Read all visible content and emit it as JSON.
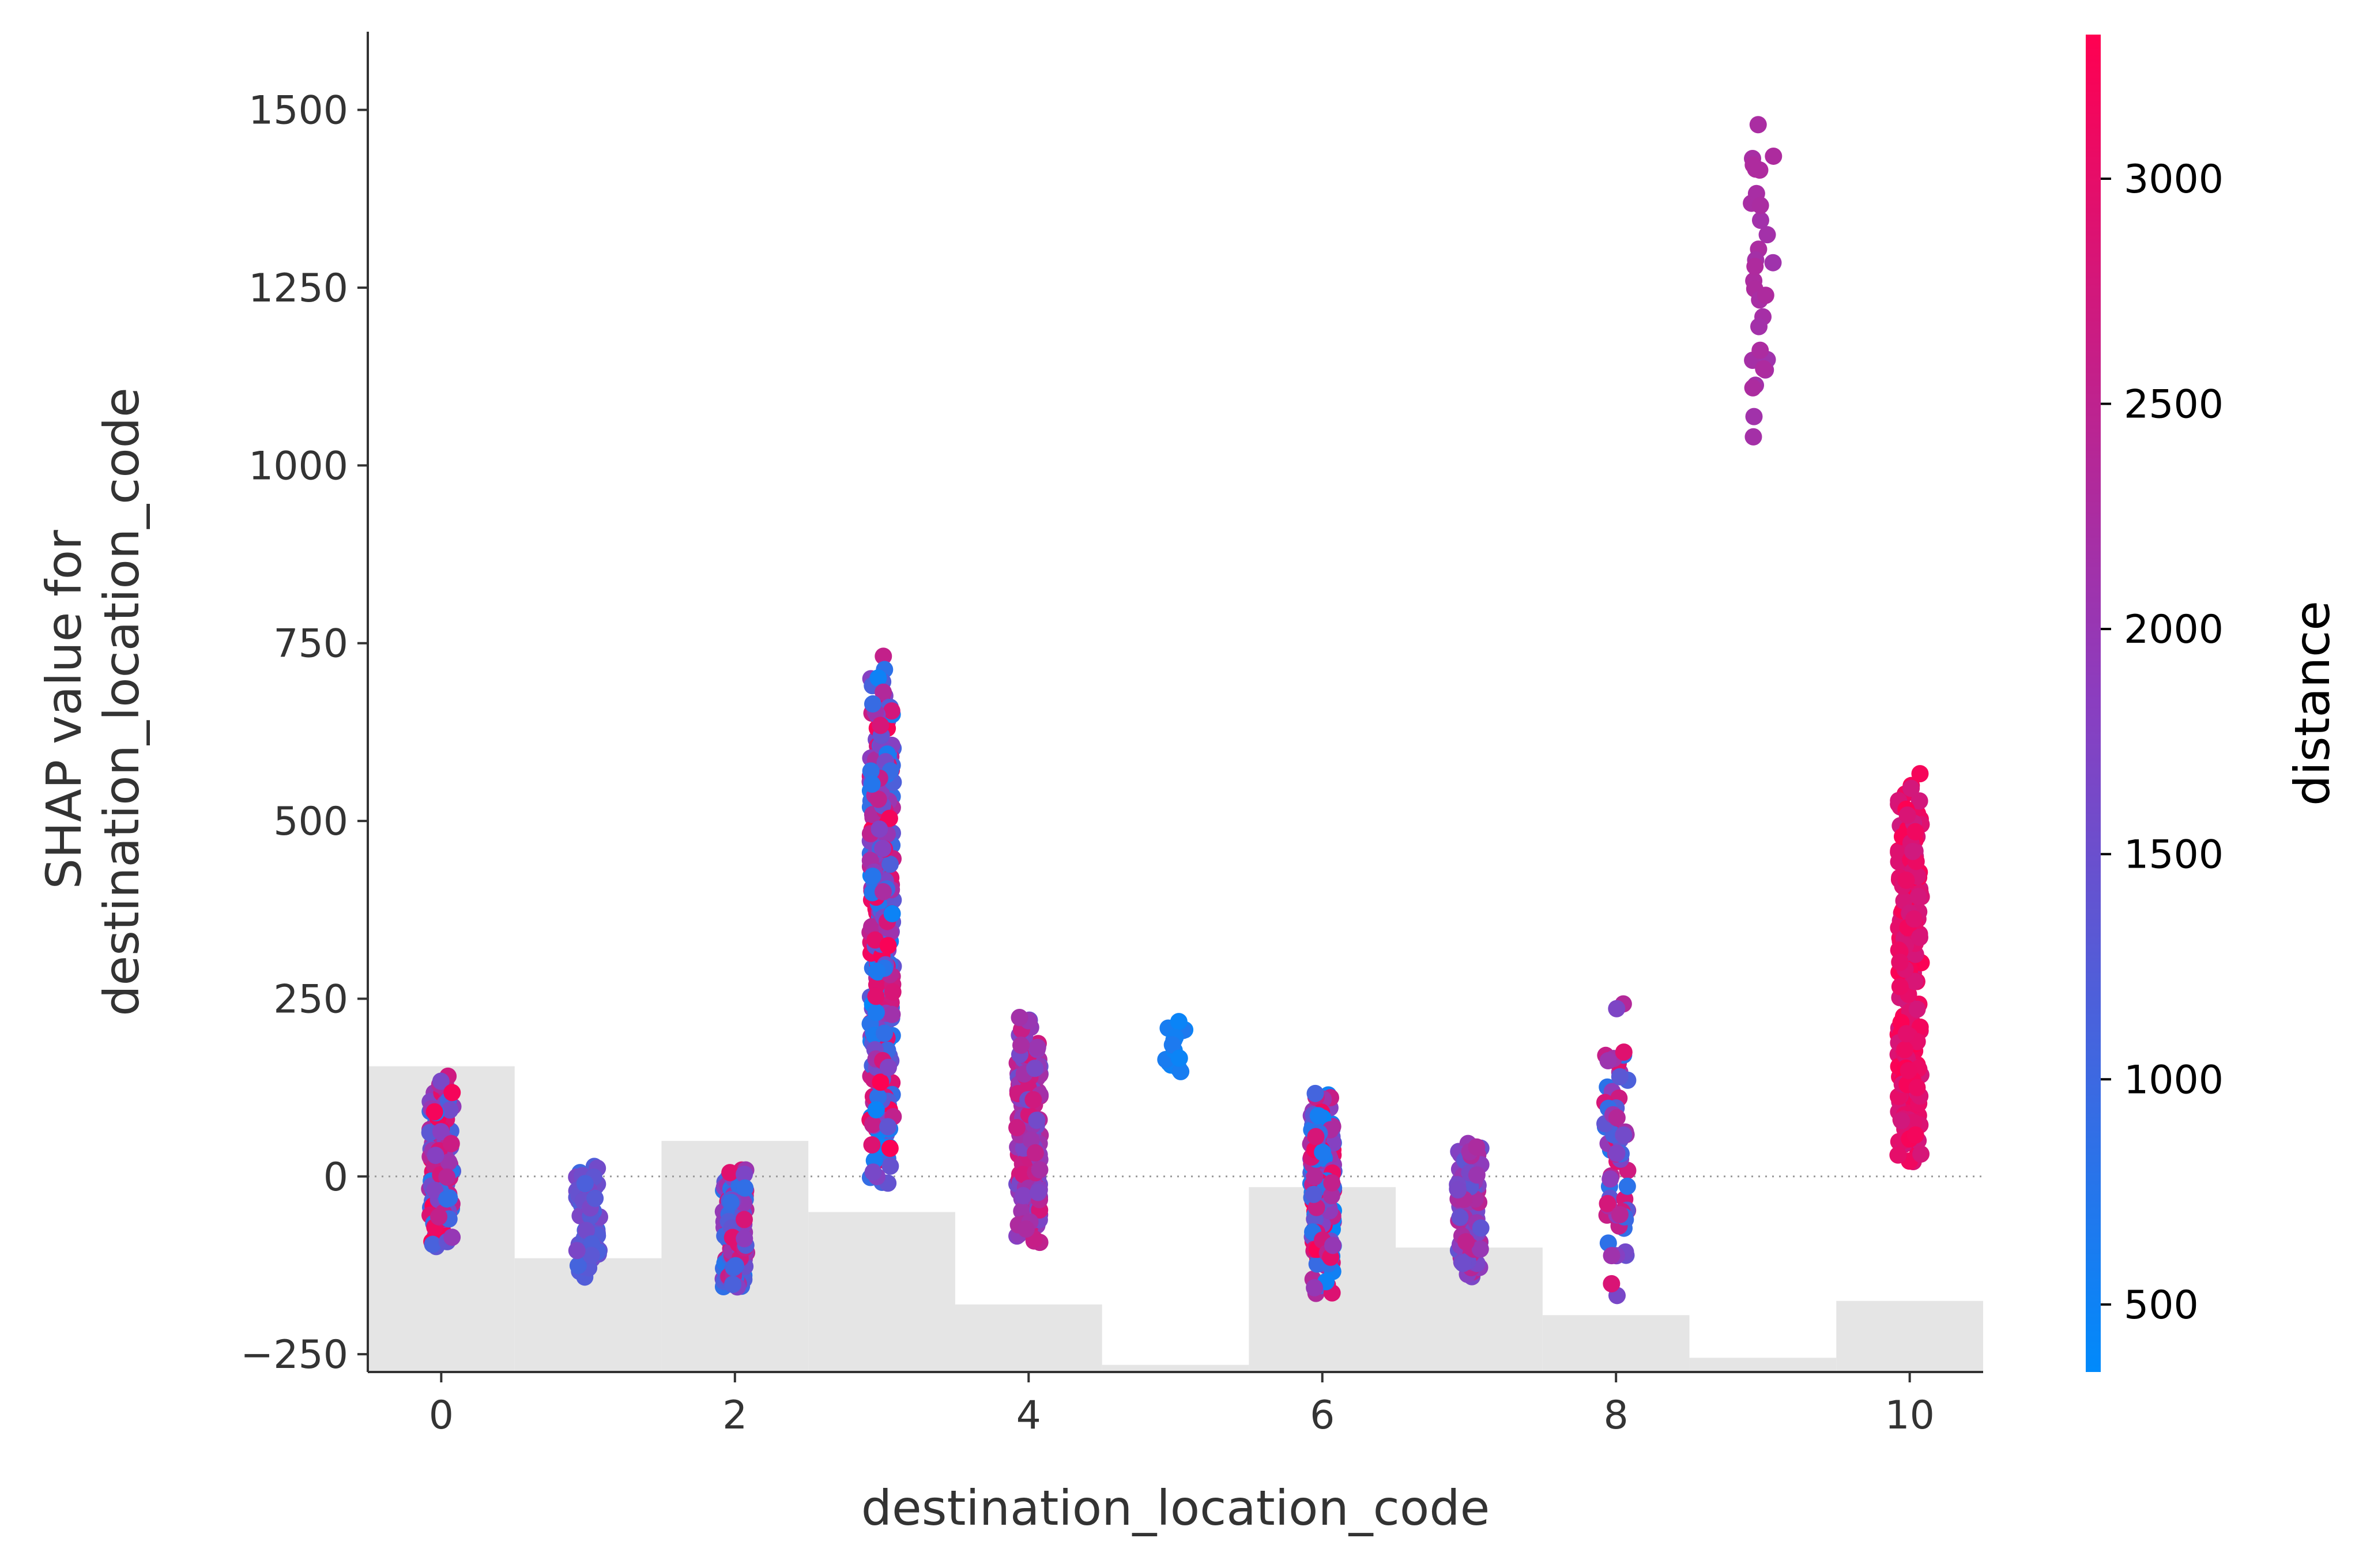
{
  "chart_data": {
    "type": "scatter",
    "subtype": "shap_dependence",
    "xlabel": "destination_location_code",
    "ylabel_lines": [
      "SHAP value for",
      "destination_location_code"
    ],
    "xlim": [
      -0.5,
      10.5
    ],
    "ylim": [
      -275,
      1610
    ],
    "x_ticks": [
      0,
      2,
      4,
      6,
      8,
      10
    ],
    "y_ticks": [
      -250,
      0,
      250,
      500,
      750,
      1000,
      1250,
      1500
    ],
    "zero_line": true,
    "histogram": {
      "description": "distribution of destination_location_code (background bars)",
      "bins": [
        0,
        1,
        2,
        3,
        4,
        5,
        6,
        7,
        8,
        9,
        10
      ],
      "heights": [
        155,
        -115,
        50,
        -50,
        -180,
        -265,
        -15,
        -100,
        -195,
        -255,
        -175
      ]
    },
    "color_feature": {
      "label": "distance",
      "range": [
        350,
        3320
      ],
      "ticks": [
        500,
        1000,
        1500,
        2000,
        2500,
        3000
      ],
      "color_low": "#008afb",
      "color_mid": "#8a3ec0",
      "color_high": "#ff0051"
    },
    "clusters": [
      {
        "x": 0,
        "y_min": -100,
        "y_max": 145,
        "n": 160,
        "d_min": 600,
        "d_max": 3300
      },
      {
        "x": 1,
        "y_min": -145,
        "y_max": 15,
        "n": 70,
        "d_min": 1000,
        "d_max": 1700
      },
      {
        "x": 2,
        "y_min": -165,
        "y_max": 20,
        "n": 150,
        "d_min": 700,
        "d_max": 3000
      },
      {
        "x": 3,
        "y_min": -15,
        "y_max": 735,
        "n": 300,
        "d_min": 400,
        "d_max": 3300
      },
      {
        "x": 4,
        "y_min": -100,
        "y_max": 225,
        "n": 150,
        "d_min": 1500,
        "d_max": 2800
      },
      {
        "x": 5,
        "y_min": 130,
        "y_max": 225,
        "n": 14,
        "d_min": 450,
        "d_max": 700
      },
      {
        "x": 6,
        "y_min": -170,
        "y_max": 120,
        "n": 200,
        "d_min": 400,
        "d_max": 3300
      },
      {
        "x": 7,
        "y_min": -150,
        "y_max": 60,
        "n": 110,
        "d_min": 1300,
        "d_max": 2500
      },
      {
        "x": 8,
        "y_min": -185,
        "y_max": 245,
        "n": 70,
        "d_min": 700,
        "d_max": 3000
      },
      {
        "x": 9,
        "y_min": 1015,
        "y_max": 1520,
        "n": 30,
        "d_min": 2100,
        "d_max": 2300
      },
      {
        "x": 10,
        "y_min": 10,
        "y_max": 570,
        "n": 220,
        "d_min": 2700,
        "d_max": 3320
      }
    ]
  }
}
